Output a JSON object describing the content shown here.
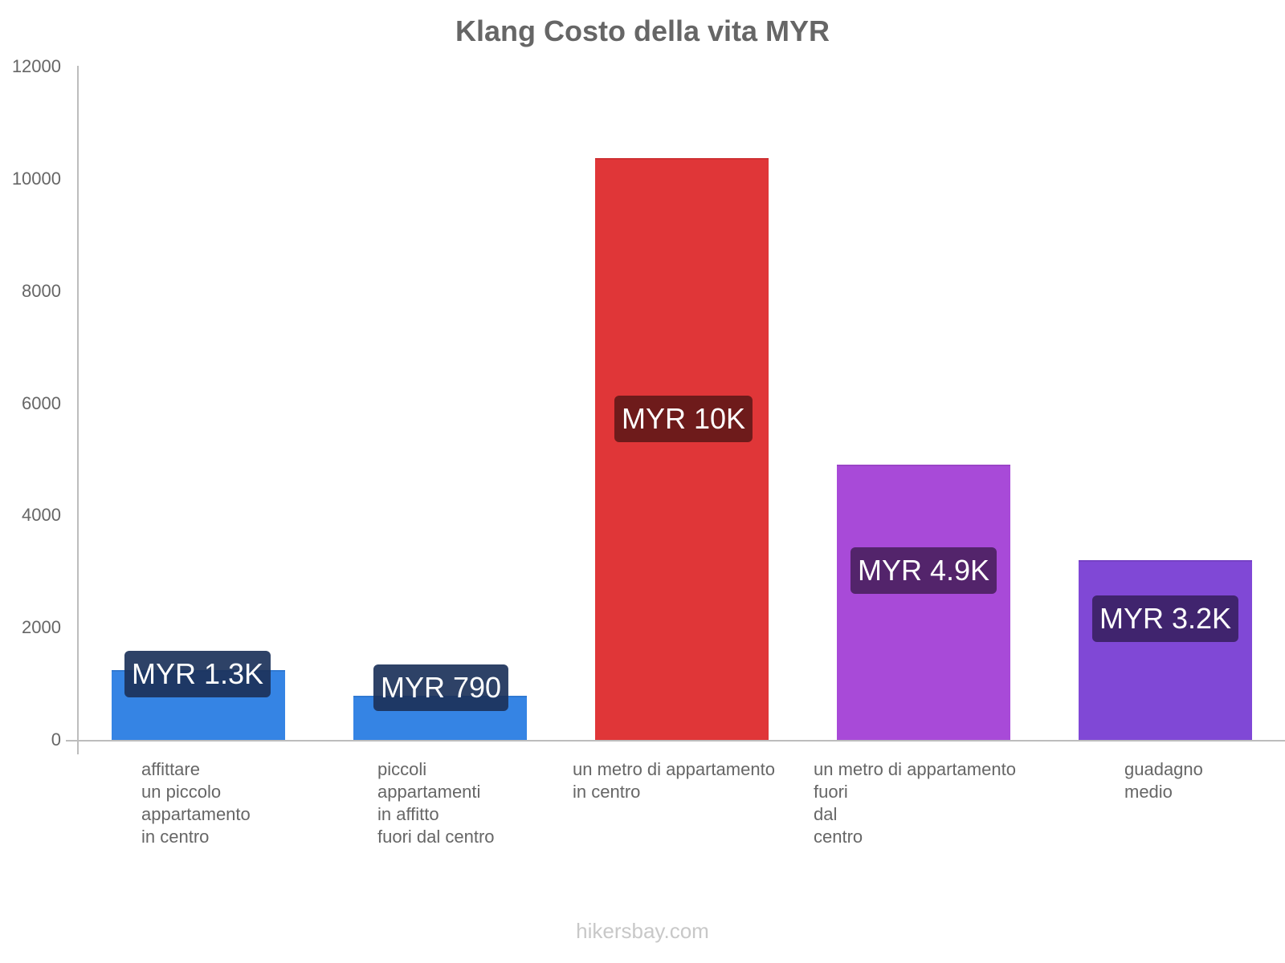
{
  "chart_data": {
    "type": "bar",
    "title": "Klang Costo della vita MYR",
    "xlabel": "",
    "ylabel": "",
    "ylim": [
      0,
      12000
    ],
    "yticks": [
      0,
      2000,
      4000,
      6000,
      8000,
      10000,
      12000
    ],
    "grid": false,
    "legend": null,
    "categories": [
      "affittare un piccolo appartamento in centro",
      "piccoli appartamenti in affitto fuori dal centro",
      "un metro di appartamento in centro",
      "un metro di appartamento fuori dal centro",
      "guadagno medio"
    ],
    "values": [
      1250,
      790,
      10370,
      4910,
      3200
    ],
    "data_labels": [
      "MYR 1.3K",
      "MYR 790",
      "MYR 10K",
      "MYR 4.9K",
      "MYR 3.2K"
    ],
    "colors": [
      "#3584e4",
      "#3584e4",
      "#e03638",
      "#a84ad8",
      "#8048d6"
    ],
    "label_bg_colors": [
      "rgba(28,50,90,0.92)",
      "rgba(28,50,90,0.92)",
      "#6e1b1b",
      "#53246b",
      "#40246e"
    ]
  },
  "title": "Klang Costo della vita MYR",
  "y_axis": {
    "ticks": [
      "0",
      "2000",
      "4000",
      "6000",
      "8000",
      "10000",
      "12000"
    ]
  },
  "x_axis": {
    "labels": [
      "affittare\nun piccolo\nappartamento\nin centro",
      "piccoli\nappartamenti\nin affitto\nfuori dal centro",
      "un metro di appartamento\nin centro",
      "un metro di appartamento\nfuori\ndal\ncentro",
      "guadagno\nmedio"
    ]
  },
  "bars": [
    {
      "label": "MYR 1.3K"
    },
    {
      "label": "MYR 790"
    },
    {
      "label": "MYR 10K"
    },
    {
      "label": "MYR 4.9K"
    },
    {
      "label": "MYR 3.2K"
    }
  ],
  "watermark": "hikersbay.com"
}
